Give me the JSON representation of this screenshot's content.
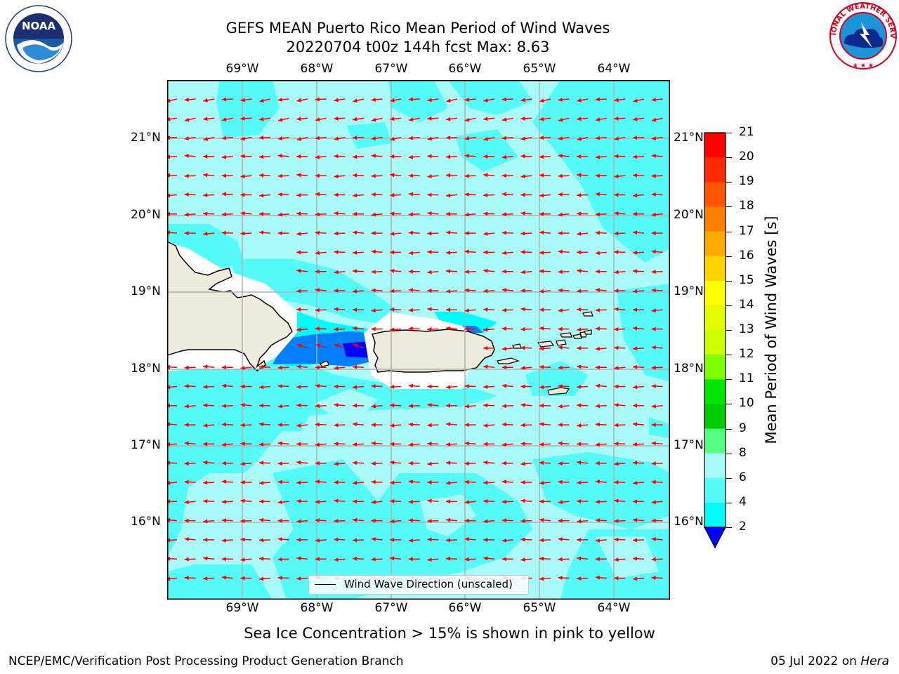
{
  "header": {
    "title_line1": "GEFS MEAN Puerto Rico Mean Period of Wind Waves",
    "title_line2": "20220704 t00z 144h fcst   Max: 8.63"
  },
  "logos": {
    "left": "NOAA",
    "right": "NATIONAL WEATHER SERVICE"
  },
  "map": {
    "region": "Puerto Rico",
    "lon_labels": [
      "69°W",
      "68°W",
      "67°W",
      "66°W",
      "65°W",
      "64°W"
    ],
    "lat_labels": [
      "21°N",
      "20°N",
      "19°N",
      "18°N",
      "17°N",
      "16°N"
    ],
    "extent": {
      "lon": [
        -70.0,
        -63.25
      ],
      "lat": [
        15.05,
        21.75
      ]
    },
    "arrow_color": "#ff0000",
    "arrow_direction": "westward",
    "land_color": "#efebdc",
    "ocean_base_color": "#a8fbf9",
    "grid_color": "#b0b0b0",
    "legend_label": "Wind Wave Direction (unscaled)"
  },
  "colorbar": {
    "label": "Mean Period of Wind Waves [s]",
    "ticks": [
      "21",
      "20",
      "19",
      "18",
      "17",
      "16",
      "15",
      "14",
      "13",
      "12",
      "11",
      "10",
      "9",
      "8",
      "6",
      "4",
      "2"
    ],
    "colors": [
      "#ff0000",
      "#ff2a00",
      "#ff5500",
      "#ff8000",
      "#ffaa00",
      "#ffd400",
      "#ffff00",
      "#e6ff00",
      "#ccff00",
      "#80ff00",
      "#00e600",
      "#00cc00",
      "#55ff80",
      "#a8fbf9",
      "#55fbf9",
      "#00fbf9",
      "#0080ff"
    ],
    "under_color": "#0000ff"
  },
  "footer": {
    "subtitle": "Sea Ice Concentration > 15% is shown in pink to yellow",
    "left": "NCEP/EMC/Verification Post Processing Product Generation Branch",
    "date": "05 Jul 2022 on ",
    "system": "Hera"
  }
}
